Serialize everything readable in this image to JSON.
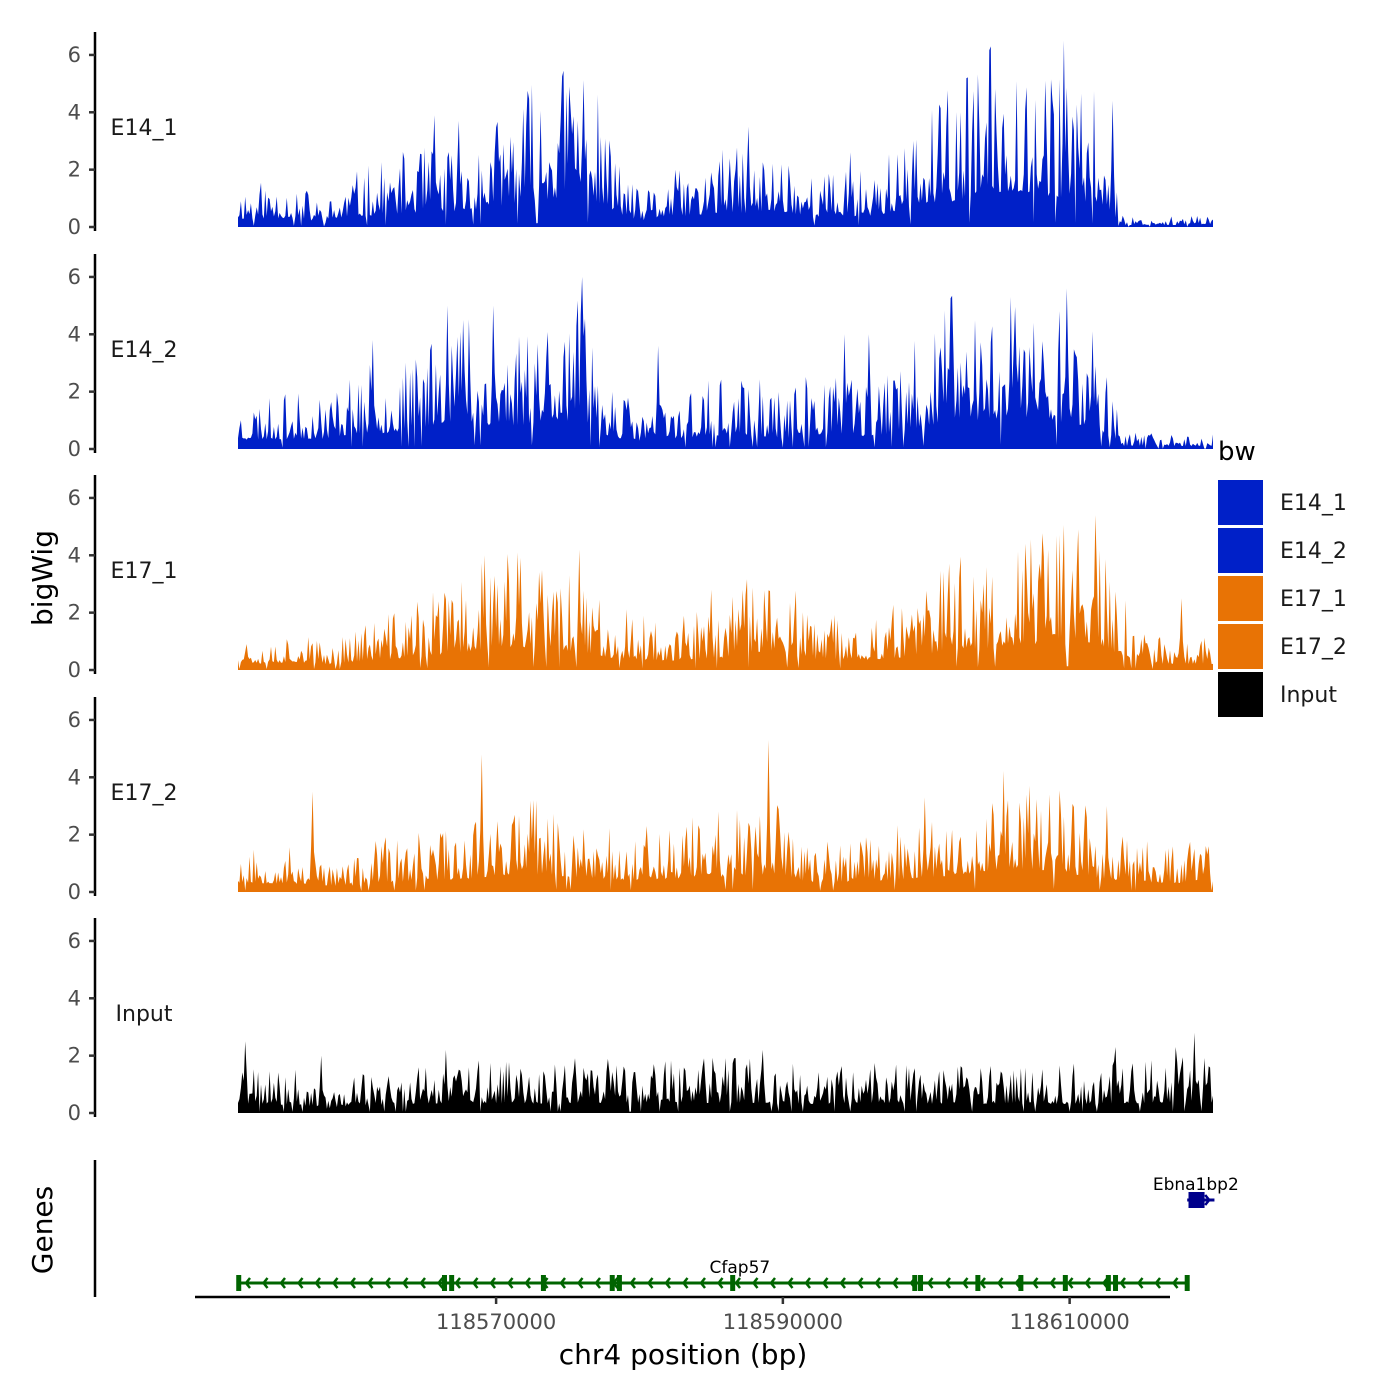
{
  "chart_data": {
    "type": "area",
    "chromosome": "chr4",
    "xlabel": "chr4 position (bp)",
    "ylabel": "bigWig",
    "genes_label": "Genes",
    "xlim": [
      118549000,
      118617000
    ],
    "ylim": [
      0,
      6.8
    ],
    "x_ticks": [
      118570000,
      118590000,
      118610000
    ],
    "x_tick_labels": [
      "118570000",
      "118590000",
      "118610000"
    ],
    "y_ticks": [
      0,
      2,
      4,
      6
    ],
    "y_tick_labels": [
      "0",
      "2",
      "4",
      "6"
    ],
    "data_range": [
      118552000,
      118620000
    ],
    "legend": {
      "title": "bw",
      "entries": [
        {
          "label": "E14_1",
          "color": "#0020c8"
        },
        {
          "label": "E14_2",
          "color": "#0020c8"
        },
        {
          "label": "E17_1",
          "color": "#e87305"
        },
        {
          "label": "E17_2",
          "color": "#e87305"
        },
        {
          "label": "Input",
          "color": "#000000"
        }
      ]
    },
    "tracks": [
      {
        "name": "E14_1",
        "color": "#0020c8",
        "seed": 11,
        "profile": [
          [
            118552000,
            0.8
          ],
          [
            118556000,
            0.9
          ],
          [
            118558000,
            0.4
          ],
          [
            118560000,
            1.0
          ],
          [
            118564000,
            1.4
          ],
          [
            118568000,
            1.6
          ],
          [
            118570000,
            2.0
          ],
          [
            118572000,
            2.6
          ],
          [
            118574000,
            2.8
          ],
          [
            118576000,
            3.4
          ],
          [
            118578000,
            1.6
          ],
          [
            118580000,
            0.6
          ],
          [
            118582000,
            1.0
          ],
          [
            118584000,
            1.1
          ],
          [
            118586000,
            1.5
          ],
          [
            118588000,
            1.3
          ],
          [
            118590000,
            1.5
          ],
          [
            118592000,
            1.0
          ],
          [
            118596000,
            1.1
          ],
          [
            118598000,
            1.5
          ],
          [
            118600000,
            2.0
          ],
          [
            118602000,
            2.6
          ],
          [
            118604000,
            3.2
          ],
          [
            118606000,
            3.6
          ],
          [
            118608000,
            3.2
          ],
          [
            118610000,
            2.7
          ],
          [
            118612000,
            2.4
          ],
          [
            118613800,
            0.2
          ],
          [
            118620000,
            0.2
          ]
        ],
        "peaks": [
          [
            118575100,
            4.9
          ],
          [
            118609600,
            6.5
          ],
          [
            118608300,
            5.1
          ],
          [
            118606900,
            4.1
          ],
          [
            118613000,
            4.4
          ],
          [
            118565700,
            3.9
          ],
          [
            118567400,
            3.7
          ],
          [
            118587600,
            3.5
          ],
          [
            118599100,
            3.0
          ],
          [
            118594700,
            2.6
          ]
        ]
      },
      {
        "name": "E14_2",
        "color": "#0020c8",
        "seed": 23,
        "profile": [
          [
            118552000,
            0.9
          ],
          [
            118556000,
            1.0
          ],
          [
            118558000,
            1.0
          ],
          [
            118560000,
            1.5
          ],
          [
            118564000,
            1.6
          ],
          [
            118566000,
            2.6
          ],
          [
            118568000,
            2.8
          ],
          [
            118570000,
            2.2
          ],
          [
            118572000,
            2.4
          ],
          [
            118574000,
            3.0
          ],
          [
            118576000,
            2.6
          ],
          [
            118578000,
            1.2
          ],
          [
            118580000,
            0.8
          ],
          [
            118584000,
            1.2
          ],
          [
            118588000,
            1.4
          ],
          [
            118590000,
            1.0
          ],
          [
            118592000,
            1.5
          ],
          [
            118596000,
            1.2
          ],
          [
            118598000,
            1.6
          ],
          [
            118600000,
            2.2
          ],
          [
            118602000,
            3.0
          ],
          [
            118604000,
            2.8
          ],
          [
            118606000,
            3.2
          ],
          [
            118608000,
            2.8
          ],
          [
            118610000,
            2.6
          ],
          [
            118612000,
            2.0
          ],
          [
            118613800,
            0.3
          ],
          [
            118620000,
            0.3
          ]
        ],
        "peaks": [
          [
            118576000,
            6.0
          ],
          [
            118566600,
            5.0
          ],
          [
            118569800,
            5.0
          ],
          [
            118567700,
            4.5
          ],
          [
            118605900,
            5.3
          ],
          [
            118609800,
            5.6
          ],
          [
            118607500,
            4.4
          ],
          [
            118611600,
            4.1
          ],
          [
            118594300,
            4.0
          ],
          [
            118596000,
            4.0
          ],
          [
            118581300,
            3.6
          ],
          [
            118561400,
            3.8
          ]
        ]
      },
      {
        "name": "E17_1",
        "color": "#e87305",
        "seed": 37,
        "profile": [
          [
            118552000,
            0.8
          ],
          [
            118554000,
            0.6
          ],
          [
            118556000,
            0.8
          ],
          [
            118558000,
            0.5
          ],
          [
            118560000,
            0.8
          ],
          [
            118564000,
            1.2
          ],
          [
            118568000,
            1.8
          ],
          [
            118570000,
            2.2
          ],
          [
            118574000,
            2.0
          ],
          [
            118576000,
            1.8
          ],
          [
            118578000,
            1.2
          ],
          [
            118582000,
            0.9
          ],
          [
            118586000,
            1.2
          ],
          [
            118588000,
            1.8
          ],
          [
            118590000,
            1.8
          ],
          [
            118592000,
            1.0
          ],
          [
            118596000,
            1.0
          ],
          [
            118598000,
            1.2
          ],
          [
            118600000,
            1.5
          ],
          [
            118602000,
            2.2
          ],
          [
            118604000,
            2.0
          ],
          [
            118606000,
            2.4
          ],
          [
            118608000,
            2.6
          ],
          [
            118610000,
            2.6
          ],
          [
            118612000,
            2.4
          ],
          [
            118614000,
            1.2
          ],
          [
            118616000,
            0.6
          ],
          [
            118620000,
            0.6
          ]
        ],
        "peaks": [
          [
            118611800,
            5.4
          ],
          [
            118610600,
            4.9
          ],
          [
            118608500,
            4.2
          ],
          [
            118575800,
            4.2
          ],
          [
            118569200,
            4.0
          ],
          [
            118571500,
            4.1
          ],
          [
            118604000,
            3.0
          ],
          [
            118617800,
            2.5
          ],
          [
            118585000,
            2.8
          ]
        ]
      },
      {
        "name": "E17_2",
        "color": "#e87305",
        "seed": 53,
        "profile": [
          [
            118552000,
            0.9
          ],
          [
            118556000,
            0.8
          ],
          [
            118558000,
            0.6
          ],
          [
            118560000,
            0.6
          ],
          [
            118562000,
            1.0
          ],
          [
            118564000,
            1.0
          ],
          [
            118566000,
            1.2
          ],
          [
            118568000,
            1.3
          ],
          [
            118570000,
            1.6
          ],
          [
            118572000,
            1.8
          ],
          [
            118574000,
            1.6
          ],
          [
            118576000,
            1.4
          ],
          [
            118578000,
            1.2
          ],
          [
            118580000,
            1.2
          ],
          [
            118584000,
            1.4
          ],
          [
            118588000,
            1.6
          ],
          [
            118590000,
            1.6
          ],
          [
            118592000,
            0.9
          ],
          [
            118594000,
            1.0
          ],
          [
            118598000,
            1.2
          ],
          [
            118602000,
            1.6
          ],
          [
            118604000,
            2.0
          ],
          [
            118606000,
            2.3
          ],
          [
            118608000,
            2.2
          ],
          [
            118610000,
            1.8
          ],
          [
            118612000,
            1.4
          ],
          [
            118614000,
            1.0
          ],
          [
            118616000,
            0.9
          ],
          [
            118620000,
            0.9
          ]
        ],
        "peaks": [
          [
            118569000,
            4.8
          ],
          [
            118589000,
            5.3
          ],
          [
            118557200,
            3.5
          ],
          [
            118607200,
            3.7
          ],
          [
            118608600,
            3.4
          ],
          [
            118612600,
            3.0
          ],
          [
            118599900,
            3.3
          ],
          [
            118604600,
            3.1
          ]
        ]
      },
      {
        "name": "Input",
        "color": "#000000",
        "seed": 71,
        "profile": [
          [
            118552000,
            0.8
          ],
          [
            118556000,
            0.8
          ],
          [
            118558000,
            0.4
          ],
          [
            118560000,
            0.7
          ],
          [
            118564000,
            0.9
          ],
          [
            118568000,
            1.0
          ],
          [
            118572000,
            0.9
          ],
          [
            118576000,
            1.0
          ],
          [
            118580000,
            1.0
          ],
          [
            118584000,
            1.0
          ],
          [
            118588000,
            1.0
          ],
          [
            118592000,
            0.9
          ],
          [
            118596000,
            1.0
          ],
          [
            118600000,
            0.9
          ],
          [
            118604000,
            0.9
          ],
          [
            118608000,
            0.9
          ],
          [
            118612000,
            0.9
          ],
          [
            118616000,
            1.0
          ],
          [
            118619000,
            1.2
          ],
          [
            118620000,
            1.0
          ]
        ],
        "peaks": [
          [
            118552500,
            2.5
          ],
          [
            118618700,
            2.8
          ],
          [
            118617400,
            2.3
          ],
          [
            118557800,
            2.0
          ],
          [
            118566500,
            2.2
          ],
          [
            118588600,
            2.2
          ],
          [
            118613200,
            2.3
          ]
        ]
      }
    ],
    "genes": [
      {
        "name": "Cfap57",
        "strand": "-",
        "color": "#006400",
        "start": 118552000,
        "end": 118618200,
        "label_x": 118587000,
        "exons": [
          118552050,
          118566400,
          118566900,
          118573300,
          118578100,
          118578600,
          118586500,
          118599200,
          118599600,
          118603600,
          118606600,
          118609700,
          118612700,
          118613200,
          118618200
        ]
      },
      {
        "name": "Ebna1bp2",
        "strand": "+",
        "color": "#00008b",
        "start": 118618200,
        "end": 118620100,
        "label_x": 118618800,
        "exons": [
          118618500,
          118618900,
          118619200
        ]
      }
    ]
  }
}
